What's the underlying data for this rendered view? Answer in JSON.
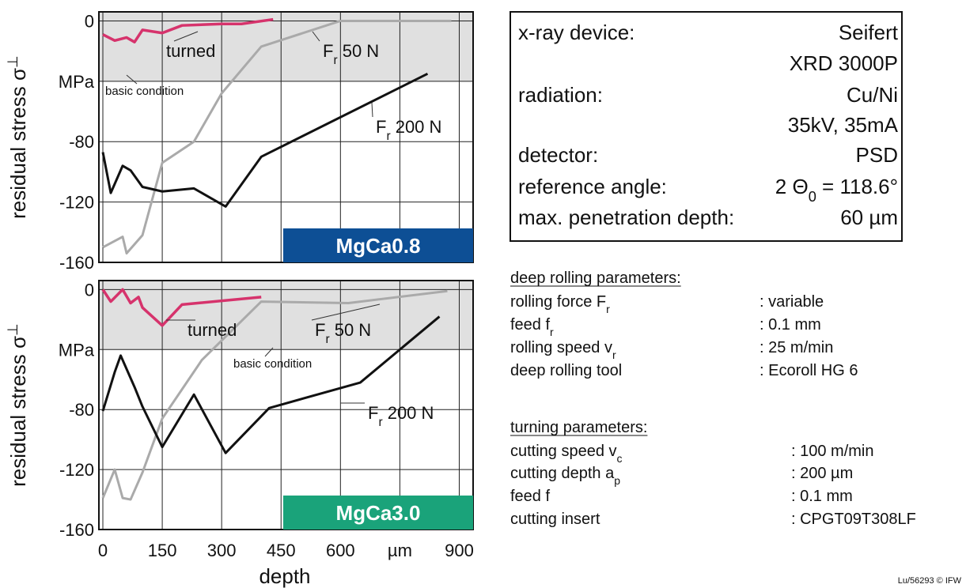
{
  "chart_data": [
    {
      "type": "line",
      "ylabel": "residual stress σ",
      "ylabel_sub": "⊥",
      "label_box": {
        "text": "MgCa0.8",
        "color": "#0d4f95"
      },
      "xlim": [
        -10,
        935
      ],
      "ylim": [
        -160,
        6
      ],
      "xticks": [
        0,
        150,
        300,
        450,
        600,
        {
          "value": 750,
          "label": "µm"
        },
        900
      ],
      "show_xtick_labels": false,
      "yticks": [
        0,
        {
          "value": -40,
          "label": "MPa"
        },
        -80,
        -120,
        -160
      ],
      "shade_above": -40,
      "shade_color": "#e0e0e0",
      "grid": true,
      "series": [
        {
          "color": "#d6336c",
          "x": [
            0,
            30,
            60,
            80,
            100,
            150,
            200,
            300,
            350,
            430
          ],
          "values": [
            -9,
            -13,
            -11,
            -14,
            -6,
            -8,
            -3,
            -2,
            -2,
            1
          ]
        },
        {
          "color": "#aaaaaa",
          "x": [
            0,
            50,
            60,
            100,
            150,
            230,
            300,
            400,
            600,
            880
          ],
          "values": [
            -150,
            -143,
            -154,
            -142,
            -94,
            -80,
            -48,
            -17,
            0,
            0
          ]
        },
        {
          "color": "#111111",
          "x": [
            0,
            20,
            50,
            70,
            100,
            150,
            230,
            310,
            400,
            820
          ],
          "values": [
            -87,
            -114,
            -96,
            -99,
            -110,
            -113,
            -111,
            -123,
            -90,
            -35
          ]
        }
      ],
      "annotations": [
        {
          "text": "turned"
        },
        {
          "text": "basic condition"
        },
        {
          "text": "F",
          "sub": "r",
          "rest": " 50 N"
        },
        {
          "text": "F",
          "sub": "r",
          "rest": " 200 N"
        }
      ]
    },
    {
      "type": "line",
      "ylabel": "residual stress σ",
      "ylabel_sub": "⊥",
      "xlabel": "depth",
      "label_box": {
        "text": "MgCa3.0",
        "color": "#1aa37a"
      },
      "xlim": [
        -10,
        935
      ],
      "ylim": [
        -160,
        6
      ],
      "xticks": [
        0,
        150,
        300,
        450,
        600,
        {
          "value": 750,
          "label": "µm"
        },
        900
      ],
      "show_xtick_labels": true,
      "yticks": [
        0,
        {
          "value": -40,
          "label": "MPa"
        },
        -80,
        -120,
        -160
      ],
      "shade_above": -40,
      "shade_color": "#e0e0e0",
      "grid": true,
      "series": [
        {
          "color": "#d6336c",
          "x": [
            0,
            20,
            50,
            70,
            90,
            100,
            150,
            200,
            400
          ],
          "values": [
            0,
            -8,
            0,
            -9,
            -5,
            -12,
            -24,
            -10,
            -5
          ]
        },
        {
          "color": "#aaaaaa",
          "x": [
            0,
            30,
            50,
            70,
            100,
            150,
            250,
            400,
            620,
            870
          ],
          "values": [
            -139,
            -120,
            -139,
            -140,
            -122,
            -86,
            -47,
            -8,
            -9,
            -1
          ]
        },
        {
          "color": "#111111",
          "x": [
            0,
            30,
            45,
            80,
            100,
            150,
            230,
            310,
            420,
            650,
            850
          ],
          "values": [
            -81,
            -55,
            -44,
            -65,
            -78,
            -105,
            -70,
            -109,
            -79,
            -62,
            -18
          ]
        }
      ],
      "annotations": [
        {
          "text": "turned"
        },
        {
          "text": "basic condition"
        },
        {
          "text": "F",
          "sub": "r",
          "rest": " 50 N"
        },
        {
          "text": "F",
          "sub": "r",
          "rest": " 200 N"
        }
      ]
    }
  ],
  "device": [
    {
      "label": "x-ray device:",
      "value": "Seifert"
    },
    {
      "value": "XRD 3000P"
    },
    {
      "label": "radiation:",
      "value": "Cu/Ni"
    },
    {
      "value": "35kV, 35mA"
    },
    {
      "label": "detector:",
      "value": "PSD"
    },
    {
      "label": "reference angle:",
      "value": "2 Θ",
      "value_sub": "0",
      "value_rest": " = 118.6°"
    },
    {
      "label": "max. penetration depth:",
      "value": "60 µm"
    }
  ],
  "rolling": {
    "title": "deep rolling parameters:",
    "rows": [
      {
        "label": "rolling force F",
        "sub": "r",
        "value": ": variable"
      },
      {
        "label": "feed f",
        "sub": "r",
        "value": ": 0.1 mm"
      },
      {
        "label": "rolling speed v",
        "sub": "r",
        "value": ": 25 m/min"
      },
      {
        "label": "deep rolling tool",
        "value": ": Ecoroll HG 6"
      }
    ]
  },
  "turning": {
    "title": "turning parameters:",
    "rows": [
      {
        "label": "cutting speed v",
        "sub": "c",
        "value": ": 100 m/min"
      },
      {
        "label": "cutting depth a",
        "sub": "p",
        "value": ": 200 µm"
      },
      {
        "label": "feed f",
        "value": ": 0.1 mm"
      },
      {
        "label": "cutting insert",
        "value": ": CPGT09T308LF"
      }
    ]
  },
  "footer": "Lu/56293 © IFW"
}
